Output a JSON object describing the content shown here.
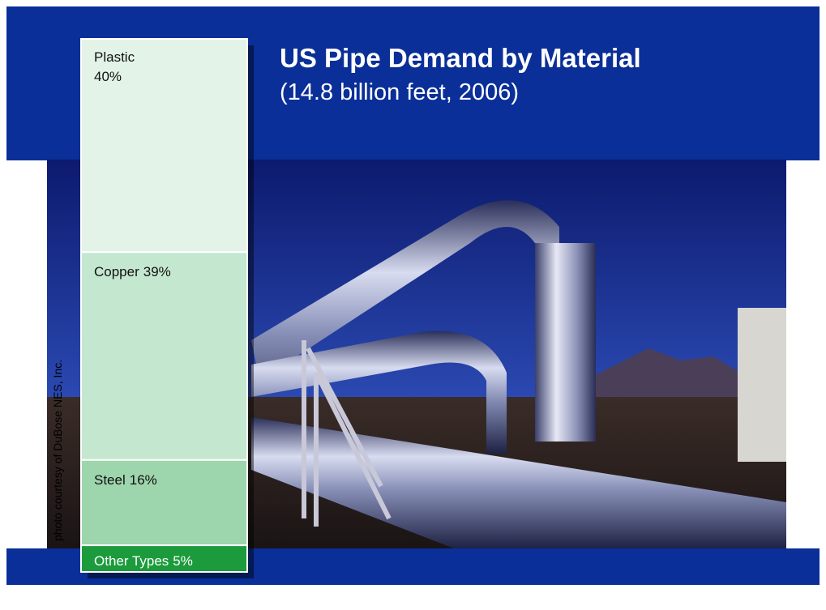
{
  "chart_data": {
    "type": "stacked-bar",
    "title": "US Pipe Demand by Material",
    "subtitle": "(14.8 billion feet, 2006)",
    "categories": [
      "Plastic",
      "Copper",
      "Steel",
      "Other Types"
    ],
    "values": [
      40,
      39,
      16,
      5
    ],
    "value_labels": [
      "40%",
      "39%",
      "16%",
      "5%"
    ],
    "colors": [
      "#e3f3e8",
      "#c4e7cf",
      "#9dd5ac",
      "#1b9b3c"
    ],
    "credit": "photo courtesy of DuBose NES, Inc."
  }
}
